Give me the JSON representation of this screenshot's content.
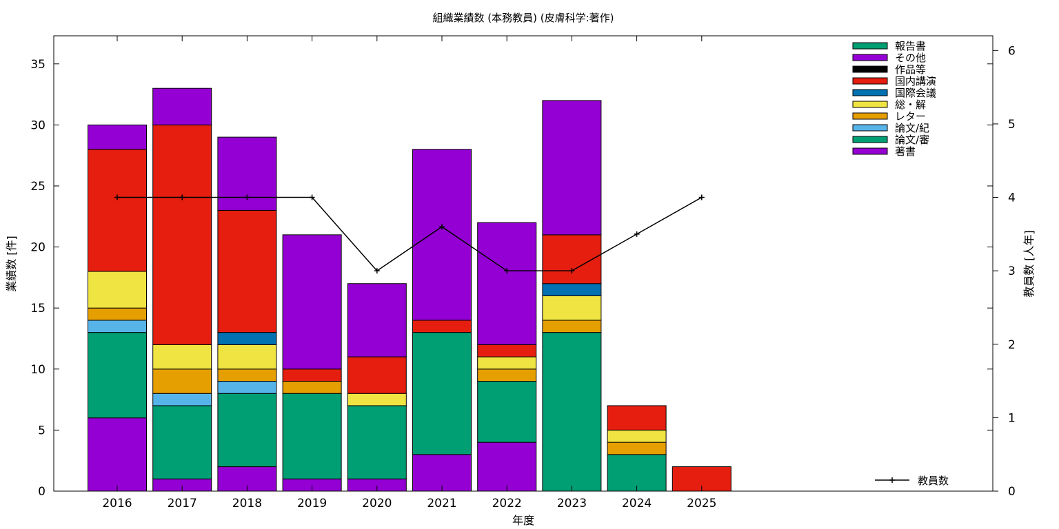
{
  "chart_data": {
    "type": "bar",
    "stacked": true,
    "title": "組織業績数 (本務教員) (皮膚科学:著作)",
    "xlabel": "年度",
    "ylabel": "業績数 [件]",
    "y2label": "教員数 [人年]",
    "categories": [
      "2016",
      "2017",
      "2018",
      "2019",
      "2020",
      "2021",
      "2022",
      "2023",
      "2024",
      "2025"
    ],
    "ylim": [
      0,
      37.3
    ],
    "y2lim": [
      0,
      6.2
    ],
    "yticks": [
      0,
      5,
      10,
      15,
      20,
      25,
      30,
      35
    ],
    "y2ticks": [
      0,
      1,
      2,
      3,
      4,
      5,
      6
    ],
    "grid": false,
    "legend_position": "top-right",
    "series": [
      {
        "name": "著書",
        "color": "#9400d3",
        "values": [
          6,
          1,
          2,
          1,
          1,
          3,
          4,
          0,
          0,
          0
        ]
      },
      {
        "name": "論文/審",
        "color": "#009e73",
        "values": [
          7,
          6,
          6,
          7,
          6,
          10,
          5,
          13,
          3,
          0
        ]
      },
      {
        "name": "論文/紀",
        "color": "#56b4e9",
        "values": [
          1,
          1,
          1,
          0,
          0,
          0,
          0,
          0,
          0,
          0
        ]
      },
      {
        "name": "レター",
        "color": "#e69f00",
        "values": [
          1,
          2,
          1,
          1,
          0,
          0,
          1,
          1,
          1,
          0
        ]
      },
      {
        "name": "総・解",
        "color": "#f0e442",
        "values": [
          3,
          2,
          2,
          0,
          1,
          0,
          1,
          2,
          1,
          0
        ]
      },
      {
        "name": "国際会議",
        "color": "#0072b2",
        "values": [
          0,
          0,
          1,
          0,
          0,
          0,
          0,
          1,
          0,
          0
        ]
      },
      {
        "name": "国内講演",
        "color": "#e51e10",
        "values": [
          10,
          18,
          10,
          1,
          3,
          1,
          1,
          4,
          2,
          2
        ]
      },
      {
        "name": "作品等",
        "color": "#000000",
        "values": [
          0,
          0,
          0,
          0,
          0,
          0,
          0,
          0,
          0,
          0
        ]
      },
      {
        "name": "その他",
        "color": "#9400d3",
        "values": [
          2,
          3,
          6,
          11,
          6,
          14,
          10,
          11,
          0,
          0
        ]
      },
      {
        "name": "報告書",
        "color": "#009e73",
        "values": [
          0,
          0,
          0,
          0,
          0,
          0,
          0,
          0,
          0,
          0
        ]
      }
    ],
    "line_series": {
      "name": "教員数",
      "color": "#000000",
      "axis": "y2",
      "values": [
        4,
        4,
        4,
        4,
        3,
        3.6,
        3,
        3,
        3.5,
        4
      ]
    }
  }
}
